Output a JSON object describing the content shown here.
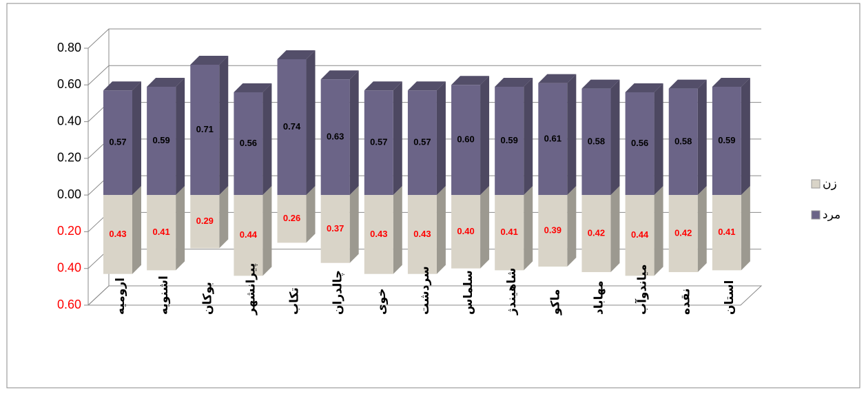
{
  "chart_data": {
    "type": "bar3d_diverging",
    "categories": [
      "ارومیه",
      "اشنویه",
      "بوکان",
      "پیرانشهر",
      "تکاب",
      "چالدران",
      "خوی",
      "سردشت",
      "سلماس",
      "شاهیندژ",
      "ماکو",
      "مهاباد",
      "میاندوآب",
      "نقده",
      "استان"
    ],
    "series": [
      {
        "name": "مرد",
        "color": "#6b6487",
        "label_color": "#000000",
        "values": [
          0.57,
          0.59,
          0.71,
          0.56,
          0.74,
          0.63,
          0.57,
          0.57,
          0.6,
          0.59,
          0.61,
          0.58,
          0.56,
          0.58,
          0.59
        ],
        "value_labels": [
          "0.57",
          "0.59",
          "0.71",
          "0.56",
          "0.74",
          "0.63",
          "0.57",
          "0.57",
          "0.60",
          "0.59",
          "0.61",
          "0.58",
          "0.56",
          "0.58",
          "0.59"
        ]
      },
      {
        "name": "زن",
        "color": "#d9d4c8",
        "label_color": "#ff0000",
        "values": [
          -0.43,
          -0.41,
          -0.29,
          -0.44,
          -0.26,
          -0.37,
          -0.43,
          -0.43,
          -0.4,
          -0.41,
          -0.39,
          -0.42,
          -0.44,
          -0.42,
          -0.41
        ],
        "value_labels": [
          "0.43",
          "0.41",
          "0.29",
          "0.44",
          "0.26",
          "0.37",
          "0.43",
          "0.43",
          "0.40",
          "0.41",
          "0.39",
          "0.42",
          "0.44",
          "0.42",
          "0.41"
        ]
      }
    ],
    "ylim": [
      -0.6,
      0.8
    ],
    "yticks": [
      {
        "value": -0.6,
        "label": "0.60"
      },
      {
        "value": -0.4,
        "label": "0.40"
      },
      {
        "value": -0.2,
        "label": "0.20"
      },
      {
        "value": 0,
        "label": "0.00"
      },
      {
        "value": 0.2,
        "label": "0.20"
      },
      {
        "value": 0.4,
        "label": "0.40"
      },
      {
        "value": 0.6,
        "label": "0.60"
      },
      {
        "value": 0.8,
        "label": "0.80"
      }
    ],
    "negative_tick_color": "#ff0000",
    "grid": true,
    "legend": "right"
  }
}
